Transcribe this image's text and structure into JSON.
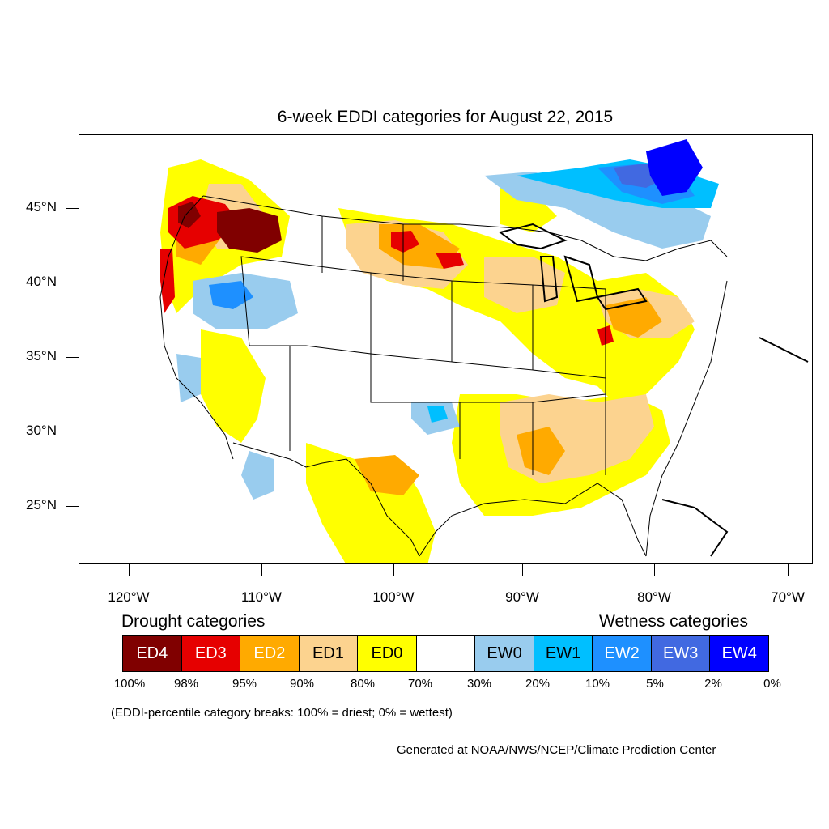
{
  "title": "6-week EDDI categories for August 22, 2015",
  "lat_labels": [
    "45°N",
    "40°N",
    "35°N",
    "30°N",
    "25°N"
  ],
  "lon_labels": [
    "120°W",
    "110°W",
    "100°W",
    "90°W",
    "80°W",
    "70°W"
  ],
  "legend": {
    "drought_heading": "Drought categories",
    "wetness_heading": "Wetness categories",
    "categories": [
      {
        "label": "ED4",
        "color": "#800000",
        "text_color": "#ffffff"
      },
      {
        "label": "ED3",
        "color": "#e60000",
        "text_color": "#ffffff"
      },
      {
        "label": "ED2",
        "color": "#ffaa00",
        "text_color": "#ffffff"
      },
      {
        "label": "ED1",
        "color": "#fcd38f",
        "text_color": "#000000"
      },
      {
        "label": "ED0",
        "color": "#ffff00",
        "text_color": "#000000"
      },
      {
        "label": "",
        "color": "#ffffff",
        "text_color": "#000000"
      },
      {
        "label": "EW0",
        "color": "#99ccee",
        "text_color": "#000000"
      },
      {
        "label": "EW1",
        "color": "#00bfff",
        "text_color": "#000000"
      },
      {
        "label": "EW2",
        "color": "#1e90ff",
        "text_color": "#ffffff"
      },
      {
        "label": "EW3",
        "color": "#4169e1",
        "text_color": "#ffffff"
      },
      {
        "label": "EW4",
        "color": "#0000ff",
        "text_color": "#ffffff"
      }
    ],
    "percentiles": [
      "100%",
      "98%",
      "95%",
      "90%",
      "80%",
      "70%",
      "30%",
      "20%",
      "10%",
      "5%",
      "2%",
      "0%"
    ]
  },
  "note": "(EDDI-percentile category breaks: 100% = driest; 0% = wettest)",
  "credit": "Generated at NOAA/NWS/NCEP/Climate Prediction Center"
}
